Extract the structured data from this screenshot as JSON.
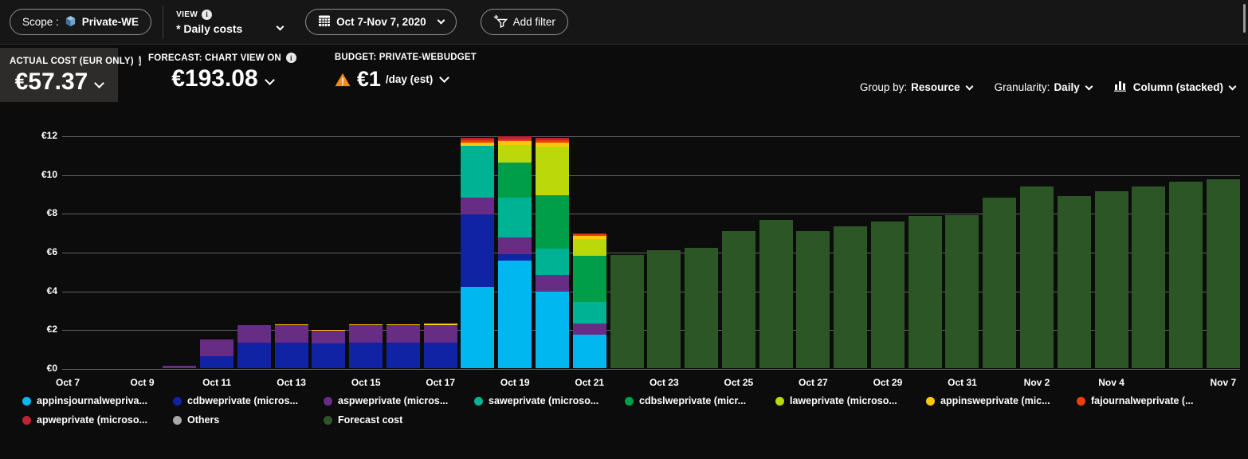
{
  "toolbar": {
    "scope_label": "Scope :",
    "scope_value": "Private-WE",
    "view_label": "VIEW",
    "view_value": "* Daily costs",
    "date_range": "Oct 7-Nov 7, 2020",
    "add_filter": "Add filter"
  },
  "kpis": {
    "actual": {
      "label": "ACTUAL COST (EUR ONLY)",
      "value": "€57.37"
    },
    "forecast": {
      "label": "FORECAST: CHART VIEW ON",
      "value": "€193.08"
    },
    "budget": {
      "label": "BUDGET: PRIVATE-WEBUDGET",
      "value": "€1",
      "suffix": "/day (est)"
    }
  },
  "controls": {
    "group_by_label": "Group by:",
    "group_by_value": "Resource",
    "granularity_label": "Granularity:",
    "granularity_value": "Daily",
    "chart_type": "Column (stacked)"
  },
  "colors": {
    "accent_warning": "#f78c1e",
    "background": "#0c0c0c",
    "tile_selected": "#2d2c2b"
  },
  "legend": {
    "rows": [
      [
        {
          "label": "appinsjournalwepriva...",
          "color": "#00b7f0"
        },
        {
          "label": "cdbweprivate (micros...",
          "color": "#0f23a4"
        },
        {
          "label": "aspweprivate (micros...",
          "color": "#672d84"
        },
        {
          "label": "saweprivate (microso...",
          "color": "#00b294"
        },
        {
          "label": "cdbslweprivate (micr...",
          "color": "#009e49"
        },
        {
          "label": "laweprivate (microso...",
          "color": "#bad80a"
        },
        {
          "label": "appinsweprivate (mic...",
          "color": "#fdc70d"
        },
        {
          "label": "fajournalweprivate (...",
          "color": "#e8420a"
        }
      ],
      [
        {
          "label": "apweprivate (microso...",
          "color": "#c02334"
        },
        {
          "label": "Others",
          "color": "#a8a8a8"
        },
        {
          "label": "Forecast cost",
          "color": "#2d5626"
        }
      ]
    ]
  },
  "chart_data": {
    "type": "bar",
    "stacked": true,
    "title": "Daily costs",
    "ylabel": "EUR",
    "ylim": [
      0,
      12
    ],
    "yticks": [
      "€12",
      "€10",
      "€8",
      "€6",
      "€4",
      "€2",
      "€0"
    ],
    "x": [
      "Oct 7",
      "Oct 8",
      "Oct 9",
      "Oct 10",
      "Oct 11",
      "Oct 12",
      "Oct 13",
      "Oct 14",
      "Oct 15",
      "Oct 16",
      "Oct 17",
      "Oct 18",
      "Oct 19",
      "Oct 20",
      "Oct 21",
      "Oct 22",
      "Oct 23",
      "Oct 24",
      "Oct 25",
      "Oct 26",
      "Oct 27",
      "Oct 28",
      "Oct 29",
      "Oct 30",
      "Oct 31",
      "Nov 1",
      "Nov 2",
      "Nov 3",
      "Nov 4",
      "Nov 5",
      "Nov 6",
      "Nov 7"
    ],
    "xticks": [
      {
        "i": 0,
        "label": "Oct 7"
      },
      {
        "i": 2,
        "label": "Oct 9"
      },
      {
        "i": 4,
        "label": "Oct 11"
      },
      {
        "i": 6,
        "label": "Oct 13"
      },
      {
        "i": 8,
        "label": "Oct 15"
      },
      {
        "i": 10,
        "label": "Oct 17"
      },
      {
        "i": 12,
        "label": "Oct 19"
      },
      {
        "i": 14,
        "label": "Oct 21"
      },
      {
        "i": 16,
        "label": "Oct 23"
      },
      {
        "i": 18,
        "label": "Oct 25"
      },
      {
        "i": 20,
        "label": "Oct 27"
      },
      {
        "i": 22,
        "label": "Oct 29"
      },
      {
        "i": 24,
        "label": "Oct 31"
      },
      {
        "i": 26,
        "label": "Nov 2"
      },
      {
        "i": 28,
        "label": "Nov 4"
      },
      {
        "i": 31,
        "label": "Nov 7"
      }
    ],
    "series": [
      {
        "name": "appinsjournalwepriva...",
        "color": "#00b7f0",
        "values": [
          0,
          0,
          0,
          0,
          0,
          0,
          0,
          0,
          0,
          0,
          0,
          4.19,
          5.56,
          3.94,
          1.71,
          0,
          0,
          0,
          0,
          0,
          0,
          0,
          0,
          0,
          0,
          0,
          0,
          0,
          0,
          0,
          0,
          0
        ]
      },
      {
        "name": "cdbweprivate (micros...",
        "color": "#0f23a4",
        "values": [
          0,
          0,
          0,
          0,
          0.62,
          1.3,
          1.3,
          1.28,
          1.3,
          1.3,
          1.3,
          3.75,
          0.33,
          0,
          0,
          0,
          0,
          0,
          0,
          0,
          0,
          0,
          0,
          0,
          0,
          0,
          0,
          0,
          0,
          0,
          0,
          0
        ]
      },
      {
        "name": "aspweprivate (micros...",
        "color": "#672d84",
        "values": [
          0,
          0,
          0,
          0.12,
          0.88,
          0.9,
          0.93,
          0.65,
          0.92,
          0.92,
          0.9,
          0.85,
          0.87,
          0.88,
          0.61,
          0,
          0,
          0,
          0,
          0,
          0,
          0,
          0,
          0,
          0,
          0,
          0,
          0,
          0,
          0,
          0,
          0
        ]
      },
      {
        "name": "saweprivate (microso...",
        "color": "#00b294",
        "values": [
          0,
          0,
          0,
          0,
          0,
          0,
          0,
          0,
          0,
          0,
          0,
          2.68,
          2.04,
          1.36,
          1.08,
          0,
          0,
          0,
          0,
          0,
          0,
          0,
          0,
          0,
          0,
          0,
          0,
          0,
          0,
          0,
          0,
          0
        ]
      },
      {
        "name": "cdbslweprivate (micr...",
        "color": "#009e49",
        "values": [
          0,
          0,
          0,
          0,
          0,
          0,
          0,
          0,
          0,
          0,
          0,
          0,
          1.81,
          2.76,
          2.38,
          0,
          0,
          0,
          0,
          0,
          0,
          0,
          0,
          0,
          0,
          0,
          0,
          0,
          0,
          0,
          0,
          0
        ]
      },
      {
        "name": "laweprivate (microso...",
        "color": "#bad80a",
        "values": [
          0,
          0,
          0,
          0,
          0,
          0,
          0,
          0,
          0,
          0,
          0,
          0,
          0.92,
          2.48,
          0.87,
          0,
          0,
          0,
          0,
          0,
          0,
          0,
          0,
          0,
          0,
          0,
          0,
          0,
          0,
          0,
          0,
          0
        ]
      },
      {
        "name": "appinsweprivate (mic...",
        "color": "#fdc70d",
        "values": [
          0,
          0,
          0,
          0,
          0,
          0.04,
          0.04,
          0.04,
          0.04,
          0.04,
          0.1,
          0.17,
          0.18,
          0.22,
          0.17,
          0,
          0,
          0,
          0,
          0,
          0,
          0,
          0,
          0,
          0,
          0,
          0,
          0,
          0,
          0,
          0,
          0
        ]
      },
      {
        "name": "fajournalweprivate (...",
        "color": "#e8420a",
        "values": [
          0,
          0,
          0,
          0,
          0,
          0,
          0,
          0,
          0,
          0,
          0,
          0.1,
          0.1,
          0.12,
          0.07,
          0,
          0,
          0,
          0,
          0,
          0,
          0,
          0,
          0,
          0,
          0,
          0,
          0,
          0,
          0,
          0,
          0
        ]
      },
      {
        "name": "apweprivate (microso...",
        "color": "#c02334",
        "values": [
          0,
          0,
          0,
          0,
          0,
          0,
          0,
          0,
          0,
          0,
          0,
          0.12,
          0.14,
          0.12,
          0.07,
          0,
          0,
          0,
          0,
          0,
          0,
          0,
          0,
          0,
          0,
          0,
          0,
          0,
          0,
          0,
          0,
          0
        ]
      },
      {
        "name": "Others",
        "color": "#a8a8a8",
        "values": [
          0,
          0,
          0,
          0,
          0,
          0,
          0,
          0,
          0,
          0,
          0,
          0,
          0,
          0,
          0,
          0,
          0,
          0,
          0,
          0,
          0,
          0,
          0,
          0,
          0,
          0,
          0,
          0,
          0,
          0,
          0,
          0
        ]
      },
      {
        "name": "Forecast cost",
        "color": "#2d5626",
        "values": [
          0,
          0,
          0,
          0,
          0,
          0,
          0,
          0,
          0,
          0,
          0,
          0,
          0,
          0,
          0,
          5.83,
          6.1,
          6.2,
          7.05,
          7.63,
          7.06,
          7.32,
          7.58,
          7.83,
          7.89,
          8.8,
          9.39,
          8.86,
          9.13,
          9.35,
          9.61,
          9.72
        ]
      }
    ]
  }
}
